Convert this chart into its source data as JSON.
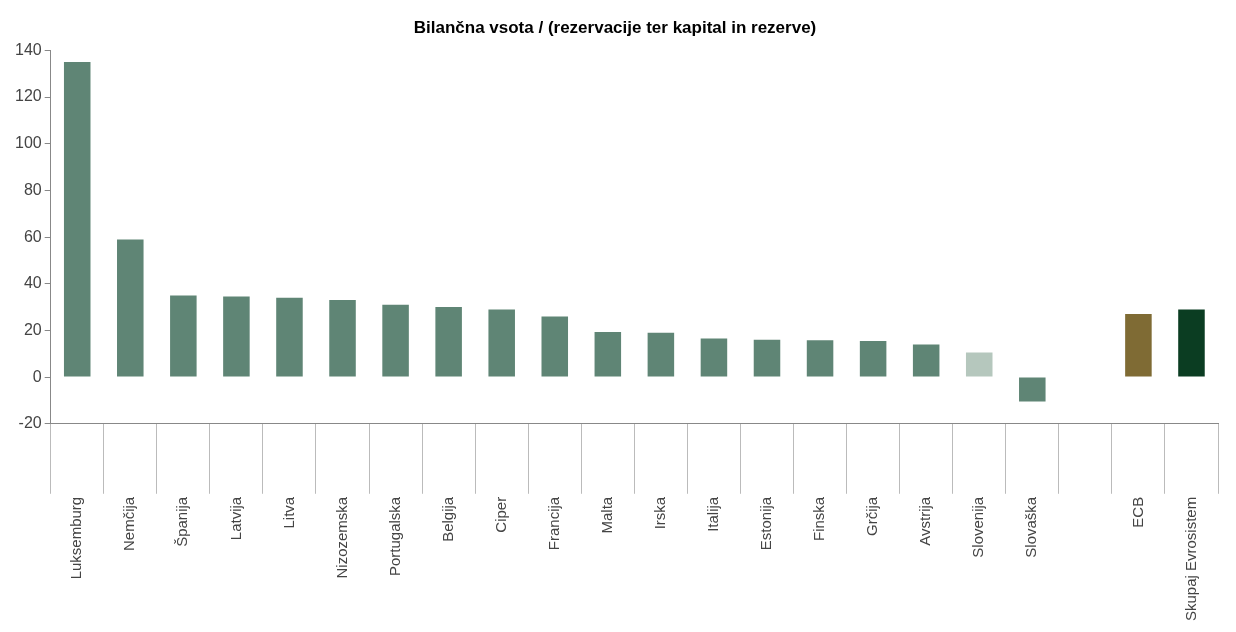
{
  "chart_data": {
    "type": "bar",
    "title": "Bilančna vsota / (rezervacije ter kapital in rezerve)",
    "categories": [
      "Luksemburg",
      "Nemčija",
      "Španija",
      "Latvija",
      "Litva",
      "Nizozemska",
      "Portugalska",
      "Belgija",
      "Ciper",
      "Francija",
      "Malta",
      "Irska",
      "Italija",
      "Estonija",
      "Finska",
      "Grčija",
      "Avstrija",
      "Slovenija",
      "Slovaška",
      null,
      "ECB",
      "Skupaj Evrosistem"
    ],
    "values": [
      135,
      59,
      35,
      34.5,
      34,
      33,
      31,
      30,
      29,
      26,
      19.3,
      19,
      16.5,
      16,
      15.8,
      15.5,
      14,
      10.5,
      -10.5,
      null,
      27,
      29
    ],
    "colors": [
      "#5f8575",
      "#5f8575",
      "#5f8575",
      "#5f8575",
      "#5f8575",
      "#5f8575",
      "#5f8575",
      "#5f8575",
      "#5f8575",
      "#5f8575",
      "#5f8575",
      "#5f8575",
      "#5f8575",
      "#5f8575",
      "#5f8575",
      "#5f8575",
      "#5f8575",
      "#b5c7bd",
      "#5f8575",
      "#5f8575",
      "#7f6b34",
      "#0b3d22"
    ],
    "ylim": [
      -20,
      140
    ],
    "yticks": [
      -20,
      0,
      20,
      40,
      60,
      80,
      100,
      120,
      140
    ],
    "grid": false,
    "legend": false
  }
}
